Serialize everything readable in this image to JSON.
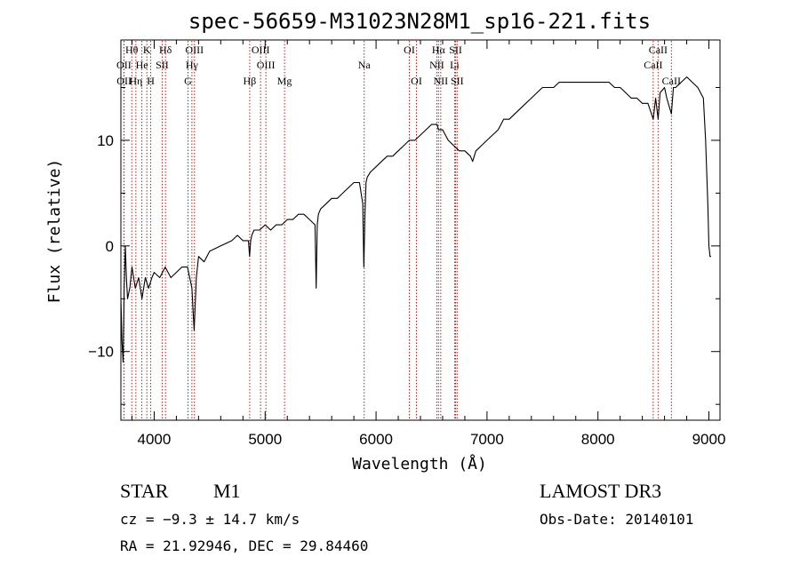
{
  "chart_data": {
    "type": "line",
    "title": "spec-56659-M31023N28M1_sp16-221.fits",
    "xlabel": "Wavelength (Å)",
    "ylabel": "Flux (relative)",
    "xlim": [
      3700,
      9100
    ],
    "ylim": [
      -16.5,
      19.5
    ],
    "xticks": [
      4000,
      5000,
      6000,
      7000,
      8000,
      9000
    ],
    "yticks": [
      -10,
      0,
      10
    ],
    "grid": false,
    "series": [
      {
        "x": [
          3700,
          3710,
          3720,
          3730,
          3740,
          3750,
          3760,
          3780,
          3800,
          3830,
          3860,
          3890,
          3920,
          3950,
          3980,
          4000,
          4050,
          4100,
          4150,
          4200,
          4250,
          4300,
          4320,
          4340,
          4360,
          4380,
          4400,
          4450,
          4500,
          4600,
          4700,
          4750,
          4800,
          4850,
          4860,
          4870,
          4880,
          4900,
          4950,
          5000,
          5050,
          5100,
          5150,
          5200,
          5250,
          5300,
          5350,
          5400,
          5450,
          5460,
          5470,
          5480,
          5500,
          5550,
          5600,
          5650,
          5700,
          5750,
          5800,
          5850,
          5880,
          5890,
          5900,
          5910,
          5920,
          5950,
          6000,
          6050,
          6100,
          6150,
          6200,
          6250,
          6300,
          6350,
          6400,
          6450,
          6500,
          6550,
          6563,
          6600,
          6650,
          6700,
          6750,
          6800,
          6850,
          6870,
          6900,
          6950,
          7000,
          7050,
          7100,
          7150,
          7200,
          7250,
          7300,
          7350,
          7400,
          7450,
          7500,
          7550,
          7600,
          7650,
          7700,
          7750,
          7800,
          7850,
          7900,
          7950,
          8000,
          8050,
          8100,
          8150,
          8200,
          8250,
          8300,
          8350,
          8400,
          8450,
          8498,
          8520,
          8542,
          8560,
          8600,
          8620,
          8662,
          8680,
          8700,
          8750,
          8800,
          8850,
          8900,
          8950,
          8970,
          8990,
          9000,
          9010,
          9020
        ],
        "y": [
          -5,
          -9,
          -11,
          -4,
          0,
          -3,
          -5,
          -4,
          -2,
          -4,
          -3,
          -5,
          -3,
          -4,
          -3,
          -2.5,
          -3,
          -2,
          -3,
          -2.5,
          -2,
          -2,
          -3,
          -4,
          -8,
          -3,
          -1,
          -1.5,
          -0.5,
          0,
          0.5,
          1,
          0.5,
          0.5,
          -1,
          0.5,
          1,
          1.5,
          1.5,
          2,
          1.5,
          2,
          2,
          2.5,
          2.5,
          3,
          3,
          2.5,
          2,
          -4,
          2,
          3,
          3.5,
          4,
          4.5,
          4.5,
          5,
          5.5,
          6,
          6,
          4,
          -2,
          3,
          6,
          6.5,
          7,
          7.5,
          8,
          8.5,
          8.5,
          9,
          9.5,
          10,
          10,
          10.5,
          11,
          11.5,
          11.5,
          11,
          11,
          10,
          9.5,
          9,
          9,
          8.5,
          8,
          9,
          9.5,
          10,
          10.5,
          11,
          12,
          12,
          12.5,
          13,
          13.5,
          14,
          14.5,
          15,
          15,
          15,
          15.5,
          15.5,
          15.5,
          15.5,
          15.5,
          15.5,
          15.5,
          15.5,
          15.5,
          15.5,
          15,
          15,
          14.5,
          14,
          14,
          13.5,
          13.5,
          12,
          14,
          12,
          14.5,
          15,
          14,
          12.5,
          15,
          15,
          15.5,
          16,
          15.5,
          15,
          14,
          10,
          4,
          0,
          -1,
          -1
        ]
      }
    ],
    "line_markers": [
      {
        "label": "Hθ",
        "wavelength": 3798,
        "row": 0
      },
      {
        "label": "K",
        "wavelength": 3934,
        "row": 0
      },
      {
        "label": "Hδ",
        "wavelength": 4102,
        "row": 0
      },
      {
        "label": "OIII",
        "wavelength": 4363,
        "row": 0
      },
      {
        "label": "OIII",
        "wavelength": 4959,
        "row": 0
      },
      {
        "label": "OI",
        "wavelength": 6300,
        "row": 0
      },
      {
        "label": "Hα",
        "wavelength": 6563,
        "row": 0
      },
      {
        "label": "SII",
        "wavelength": 6717,
        "row": 0
      },
      {
        "label": "CaII",
        "wavelength": 8542,
        "row": 0
      },
      {
        "label": "OII",
        "wavelength": 3727,
        "row": 1
      },
      {
        "label": "He",
        "wavelength": 3889,
        "row": 1
      },
      {
        "label": "SII",
        "wavelength": 4072,
        "row": 1
      },
      {
        "label": "Hγ",
        "wavelength": 4340,
        "row": 1
      },
      {
        "label": "OIII",
        "wavelength": 5007,
        "row": 1
      },
      {
        "label": "Na",
        "wavelength": 5893,
        "row": 1
      },
      {
        "label": "NII",
        "wavelength": 6548,
        "row": 1
      },
      {
        "label": "Li",
        "wavelength": 6708,
        "row": 1
      },
      {
        "label": "CaII",
        "wavelength": 8498,
        "row": 1
      },
      {
        "label": "OII",
        "wavelength": 3729,
        "row": 2
      },
      {
        "label": "Hη",
        "wavelength": 3835,
        "row": 2
      },
      {
        "label": "H",
        "wavelength": 3969,
        "row": 2
      },
      {
        "label": "G",
        "wavelength": 4305,
        "row": 2
      },
      {
        "label": "Hβ",
        "wavelength": 4861,
        "row": 2
      },
      {
        "label": "Mg",
        "wavelength": 5175,
        "row": 2
      },
      {
        "label": "OI",
        "wavelength": 6364,
        "row": 2
      },
      {
        "label": "NII",
        "wavelength": 6583,
        "row": 2
      },
      {
        "label": "SII",
        "wavelength": 6731,
        "row": 2
      },
      {
        "label": "CaII",
        "wavelength": 8662,
        "row": 2
      }
    ],
    "line_color": "#000000",
    "marker_color": "#b22222"
  },
  "info": {
    "class": "STAR",
    "subclass": "M1",
    "survey": "LAMOST DR3",
    "cz": "cz = −9.3 ± 14.7 km/s",
    "obs_date": "Obs-Date: 20140101",
    "coords": "RA =  21.92946, DEC =  29.84460"
  }
}
